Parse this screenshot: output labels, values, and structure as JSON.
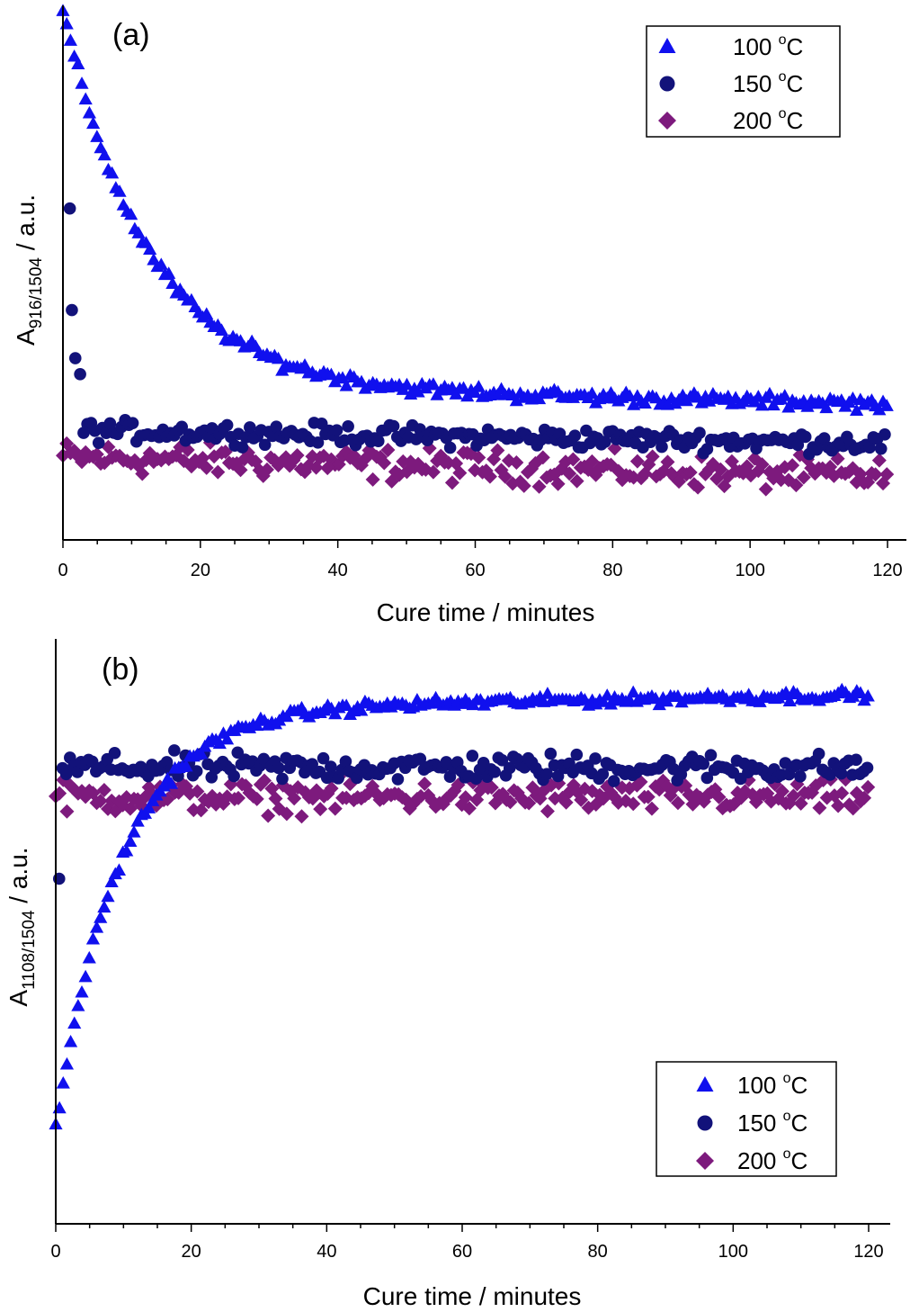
{
  "colors": {
    "c100": "#1010ee",
    "c150": "#12127a",
    "c200": "#7d1a7d",
    "axis": "#000000"
  },
  "chart_data": [
    {
      "type": "scatter",
      "panel_label": "(a)",
      "xlabel": "Cure time / minutes",
      "ylabel_main": "A",
      "ylabel_sub": "916/1504",
      "ylabel_unit": " / a.u.",
      "xlim": [
        0,
        123
      ],
      "ylim": [
        0,
        1
      ],
      "xticks": [
        "0",
        "20",
        "40",
        "60",
        "80",
        "100",
        "120"
      ],
      "xtick_values": [
        0,
        20,
        40,
        60,
        80,
        100,
        120
      ],
      "y_ticks_shown": false,
      "legend_position": "top-right",
      "series": [
        {
          "name": "100 °C",
          "legend_main": "100 ",
          "legend_sup": "o",
          "legend_unit": "C",
          "marker": "triangle",
          "color": "#1010ee",
          "trend": {
            "a": 0.705,
            "b": 0.285,
            "tau": 12.5,
            "slope": -0.00025,
            "noise": 0.018
          }
        },
        {
          "name": "150 °C",
          "legend_main": "150 ",
          "legend_sup": "o",
          "legend_unit": "C",
          "marker": "circle",
          "color": "#12127a",
          "first_points": [
            [
              1,
              0.62
            ],
            [
              1.3,
              0.43
            ],
            [
              1.8,
              0.34
            ],
            [
              2.5,
              0.31
            ]
          ],
          "trend": {
            "a": 0.0,
            "b": 0.205,
            "tau": 1,
            "slope": -0.0002,
            "noise": 0.028
          }
        },
        {
          "name": "200 °C",
          "legend_main": "200 ",
          "legend_sup": "o",
          "legend_unit": "C",
          "marker": "diamond",
          "color": "#7d1a7d",
          "trend": {
            "a": 0.0,
            "b": 0.155,
            "tau": 1,
            "slope": -0.0003,
            "noise": 0.045
          }
        }
      ]
    },
    {
      "type": "scatter",
      "panel_label": "(b)",
      "xlabel": "Cure time / minutes",
      "ylabel_main": "A",
      "ylabel_sub": "1108/1504",
      "ylabel_unit": " / a.u.",
      "xlim": [
        0,
        123
      ],
      "ylim": [
        0,
        1
      ],
      "xticks": [
        "0",
        "20",
        "40",
        "60",
        "80",
        "100",
        "120"
      ],
      "xtick_values": [
        0,
        20,
        40,
        60,
        80,
        100,
        120
      ],
      "y_ticks_shown": false,
      "legend_position": "bottom-right",
      "series": [
        {
          "name": "100 °C",
          "legend_main": "100 ",
          "legend_sup": "o",
          "legend_unit": "C",
          "marker": "triangle",
          "color": "#1010ee",
          "trend": {
            "a": -0.72,
            "b": 0.88,
            "tau": 9.5,
            "slope": 0.0002,
            "noise": 0.014
          }
        },
        {
          "name": "150 °C",
          "legend_main": "150 ",
          "legend_sup": "o",
          "legend_unit": "C",
          "marker": "circle",
          "color": "#12127a",
          "first_points": [
            [
              0.5,
              0.59
            ]
          ],
          "trend": {
            "a": 0.0,
            "b": 0.78,
            "tau": 1,
            "slope": 0.0,
            "noise": 0.035
          }
        },
        {
          "name": "200 °C",
          "legend_main": "200 ",
          "legend_sup": "o",
          "legend_unit": "C",
          "marker": "diamond",
          "color": "#7d1a7d",
          "trend": {
            "a": 0.0,
            "b": 0.73,
            "tau": 1,
            "slope": 0.0,
            "noise": 0.04
          }
        }
      ]
    }
  ]
}
